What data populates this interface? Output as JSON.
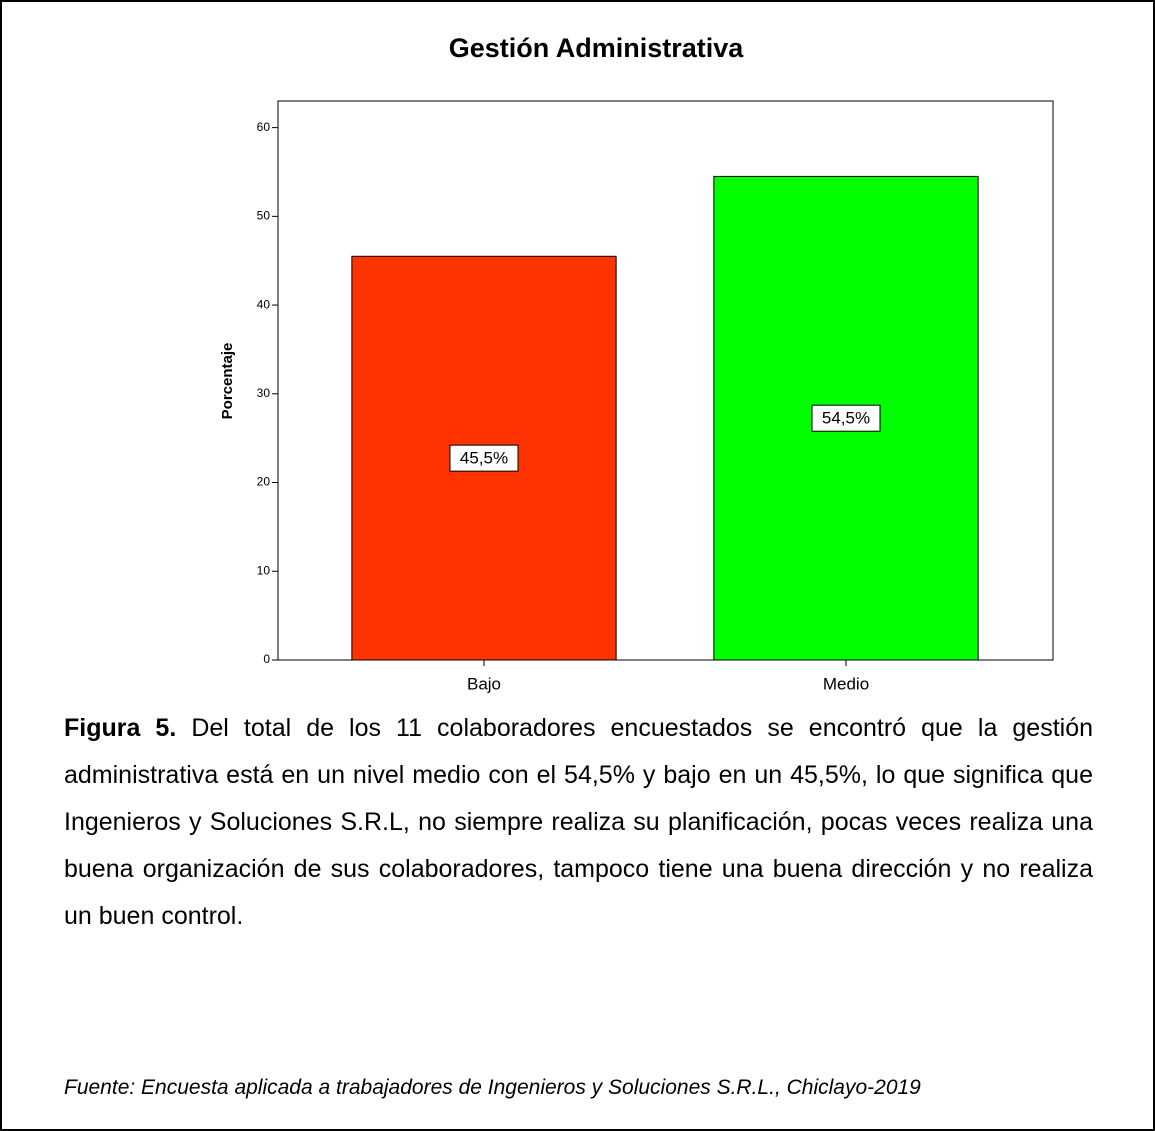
{
  "chart_data": {
    "type": "bar",
    "title": "Gestión Administrativa",
    "y_label": "Porcentaje",
    "categories": [
      "Bajo",
      "Medio"
    ],
    "values": [
      45.5,
      54.5
    ],
    "value_labels": [
      "45,5%",
      "54,5%"
    ],
    "colors": [
      "#ff3300",
      "#00ff00"
    ],
    "ylim": [
      0,
      63
    ],
    "yticks": [
      0,
      10,
      20,
      30,
      40,
      50,
      60
    ],
    "grid": false
  },
  "caption": {
    "label": "Figura 5.",
    "text": "Del total de los 11 colaboradores encuestados se encontró que la gestión administrativa está en un nivel medio con el 54,5% y bajo en un 45,5%, lo que significa que Ingenieros y Soluciones S.R.L, no siempre realiza su planificación, pocas veces realiza una buena organización de sus colaboradores, tampoco tiene una buena dirección y no realiza un buen control."
  },
  "source": "Fuente: Encuesta aplicada a trabajadores de Ingenieros y Soluciones S.R.L., Chiclayo-2019"
}
